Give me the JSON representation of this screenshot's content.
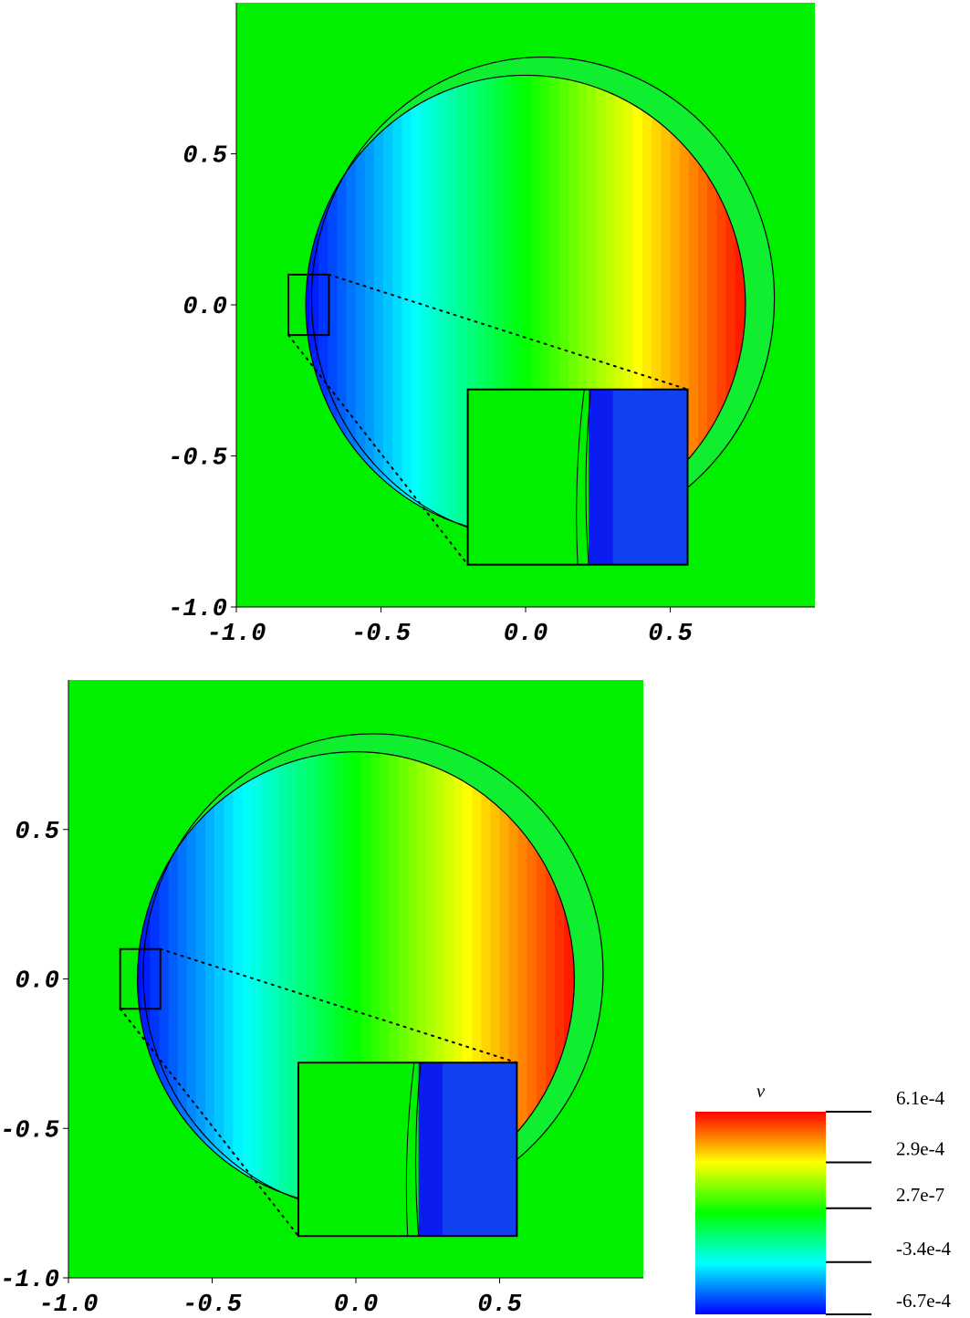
{
  "chart_data": [
    {
      "type": "heatmap",
      "xlim": [
        -1,
        1
      ],
      "ylim": [
        -1,
        1
      ],
      "xticks": [
        {
          "value": -1,
          "label": "-1.0"
        },
        -0.5,
        {
          "value": 0,
          "label": "0.0"
        },
        0.5
      ],
      "yticks": [
        {
          "value": -1,
          "label": "-1.0"
        },
        -0.5,
        {
          "value": 0,
          "label": "0.0"
        },
        0.5
      ]
    },
    {
      "type": "heatmap",
      "xlim": [
        -1,
        1
      ],
      "ylim": [
        -1,
        1
      ],
      "xticks": [
        {
          "value": -1,
          "label": "-1.0"
        },
        -0.5,
        {
          "value": 0,
          "label": "0.0"
        },
        0.5
      ],
      "yticks": [
        {
          "value": -1,
          "label": "-1.0"
        },
        -0.5,
        {
          "value": 0,
          "label": "0.0"
        },
        0.5
      ]
    },
    {
      "type": "colorbar",
      "title": "v",
      "clim": [
        -0.00067,
        0.00061
      ],
      "ticks": [
        {
          "value": 0.00061,
          "label": "6.1e-4"
        },
        {
          "value": 0.00029,
          "label": "2.9e-4"
        },
        {
          "value": 2.7e-07,
          "label": "2.7e-7"
        },
        {
          "value": -0.00034,
          "label": "-3.4e-4"
        },
        {
          "value": -0.00067,
          "label": "-6.7e-4"
        }
      ]
    }
  ]
}
